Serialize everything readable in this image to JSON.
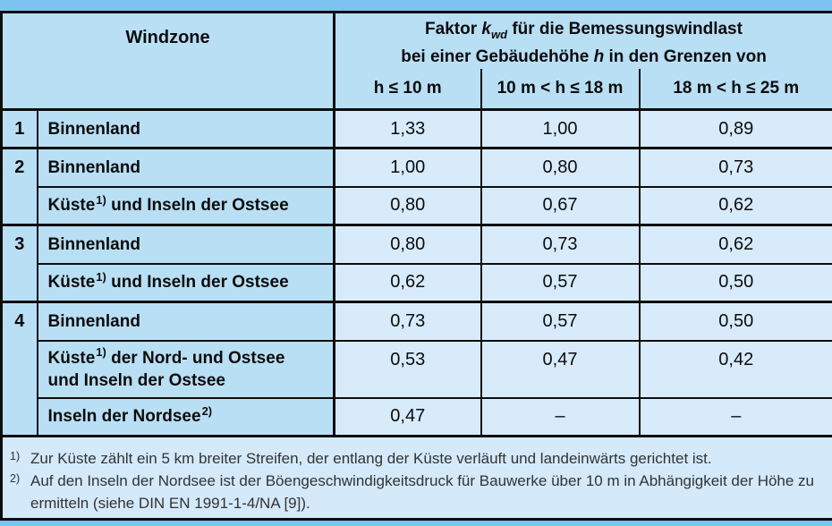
{
  "colors": {
    "page_strip": "#7cc3ef",
    "header_cell_bg": "#b9dff5",
    "value_cell_bg": "#d8ebfb",
    "footnote_bg": "#d4e9fa",
    "border": "#0d0d0d",
    "table_text": "#0c0c0c",
    "footnote_text": "#333333"
  },
  "table": {
    "header": {
      "windzone": "Windzone",
      "faktor": {
        "pre": "Faktor ",
        "k": "k",
        "k_sub": "wd",
        "rest1": " für die Bemessungswindlast",
        "line2_pre": "bei einer Gebäudehöhe ",
        "h": "h",
        "line2_rest": " in den Grenzen von"
      },
      "height_cols": [
        "h ≤ 10 m",
        "10 m < h ≤ 18 m",
        "18 m < h ≤ 25 m"
      ]
    },
    "zones": [
      {
        "number": "1",
        "rows": [
          {
            "region_pre": "Binnenland",
            "values": [
              "1,33",
              "1,00",
              "0,89"
            ]
          }
        ]
      },
      {
        "number": "2",
        "rows": [
          {
            "region_pre": "Binnenland",
            "values": [
              "1,00",
              "0,80",
              "0,73"
            ]
          },
          {
            "region_pre": "Küste",
            "region_sup": "1)",
            "region_post": " und Inseln der Ostsee",
            "values": [
              "0,80",
              "0,67",
              "0,62"
            ]
          }
        ]
      },
      {
        "number": "3",
        "rows": [
          {
            "region_pre": "Binnenland",
            "values": [
              "0,80",
              "0,73",
              "0,62"
            ]
          },
          {
            "region_pre": "Küste",
            "region_sup": "1)",
            "region_post": " und Inseln der Ostsee",
            "values": [
              "0,62",
              "0,57",
              "0,50"
            ]
          }
        ]
      },
      {
        "number": "4",
        "rows": [
          {
            "region_pre": "Binnenland",
            "values": [
              "0,73",
              "0,57",
              "0,50"
            ]
          },
          {
            "region_pre": "Küste",
            "region_sup": "1)",
            "region_post": " der Nord- und Ostsee",
            "region_line2": "und Inseln der Ostsee",
            "values": [
              "0,53",
              "0,47",
              "0,42"
            ]
          },
          {
            "region_pre": "Inseln der Nordsee",
            "region_sup": "2)",
            "values": [
              "0,47",
              "–",
              "–"
            ]
          }
        ]
      }
    ],
    "footnotes": [
      {
        "marker": "1)",
        "text": "Zur Küste zählt ein 5 km breiter Streifen, der entlang der Küste verläuft und landeinwärts gerichtet ist."
      },
      {
        "marker": "2)",
        "text": "Auf den Inseln der Nordsee ist der Böengeschwindigkeitsdruck für Bauwerke über 10 m in Abhängigkeit der Höhe zu ermitteln (siehe DIN EN 1991-1-4/NA [9])."
      }
    ]
  }
}
